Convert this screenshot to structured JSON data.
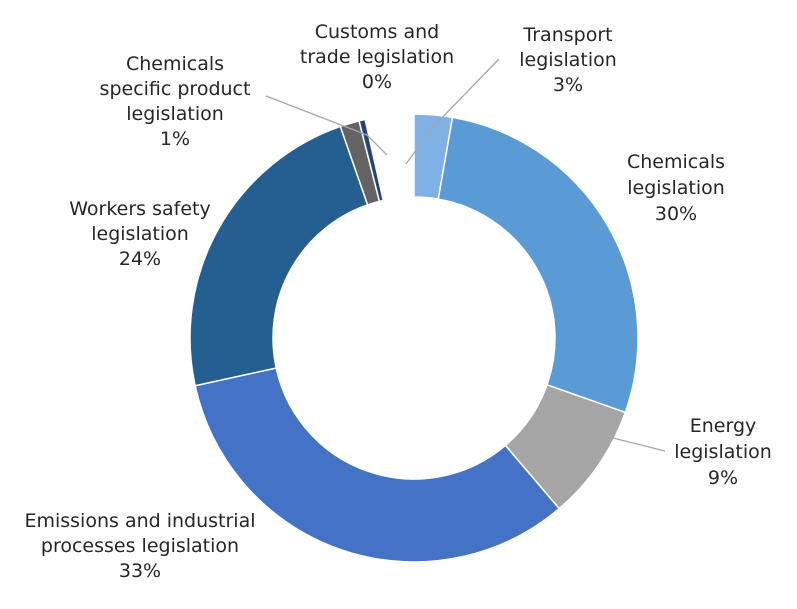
{
  "chart_data": {
    "type": "pie",
    "style": "donut",
    "title": "",
    "slices": [
      {
        "label": [
          "Transport",
          "legislation"
        ],
        "value": 3,
        "value_label": "3%",
        "color": "#7fb0e6"
      },
      {
        "label": [
          "Chemicals",
          "legislation"
        ],
        "value": 30,
        "value_label": "30%",
        "color": "#5b9bd5"
      },
      {
        "label": [
          "Energy",
          "legislation"
        ],
        "value": 9,
        "value_label": "9%",
        "color": "#a5a5a5"
      },
      {
        "label": [
          "Emissions and industrial",
          "processes legislation"
        ],
        "value": 33,
        "value_label": "33%",
        "color": "#4472c4"
      },
      {
        "label": [
          "Workers safety",
          "legislation"
        ],
        "value": 24,
        "value_label": "24%",
        "color": "#255e91"
      },
      {
        "label": [
          "Chemicals",
          "specific product",
          "legislation"
        ],
        "value": 1,
        "value_label": "1%",
        "color": "#636363"
      },
      {
        "label": [
          "Customs and",
          "trade legislation"
        ],
        "value": 0,
        "value_label": "0%",
        "color": "#264478"
      }
    ]
  }
}
